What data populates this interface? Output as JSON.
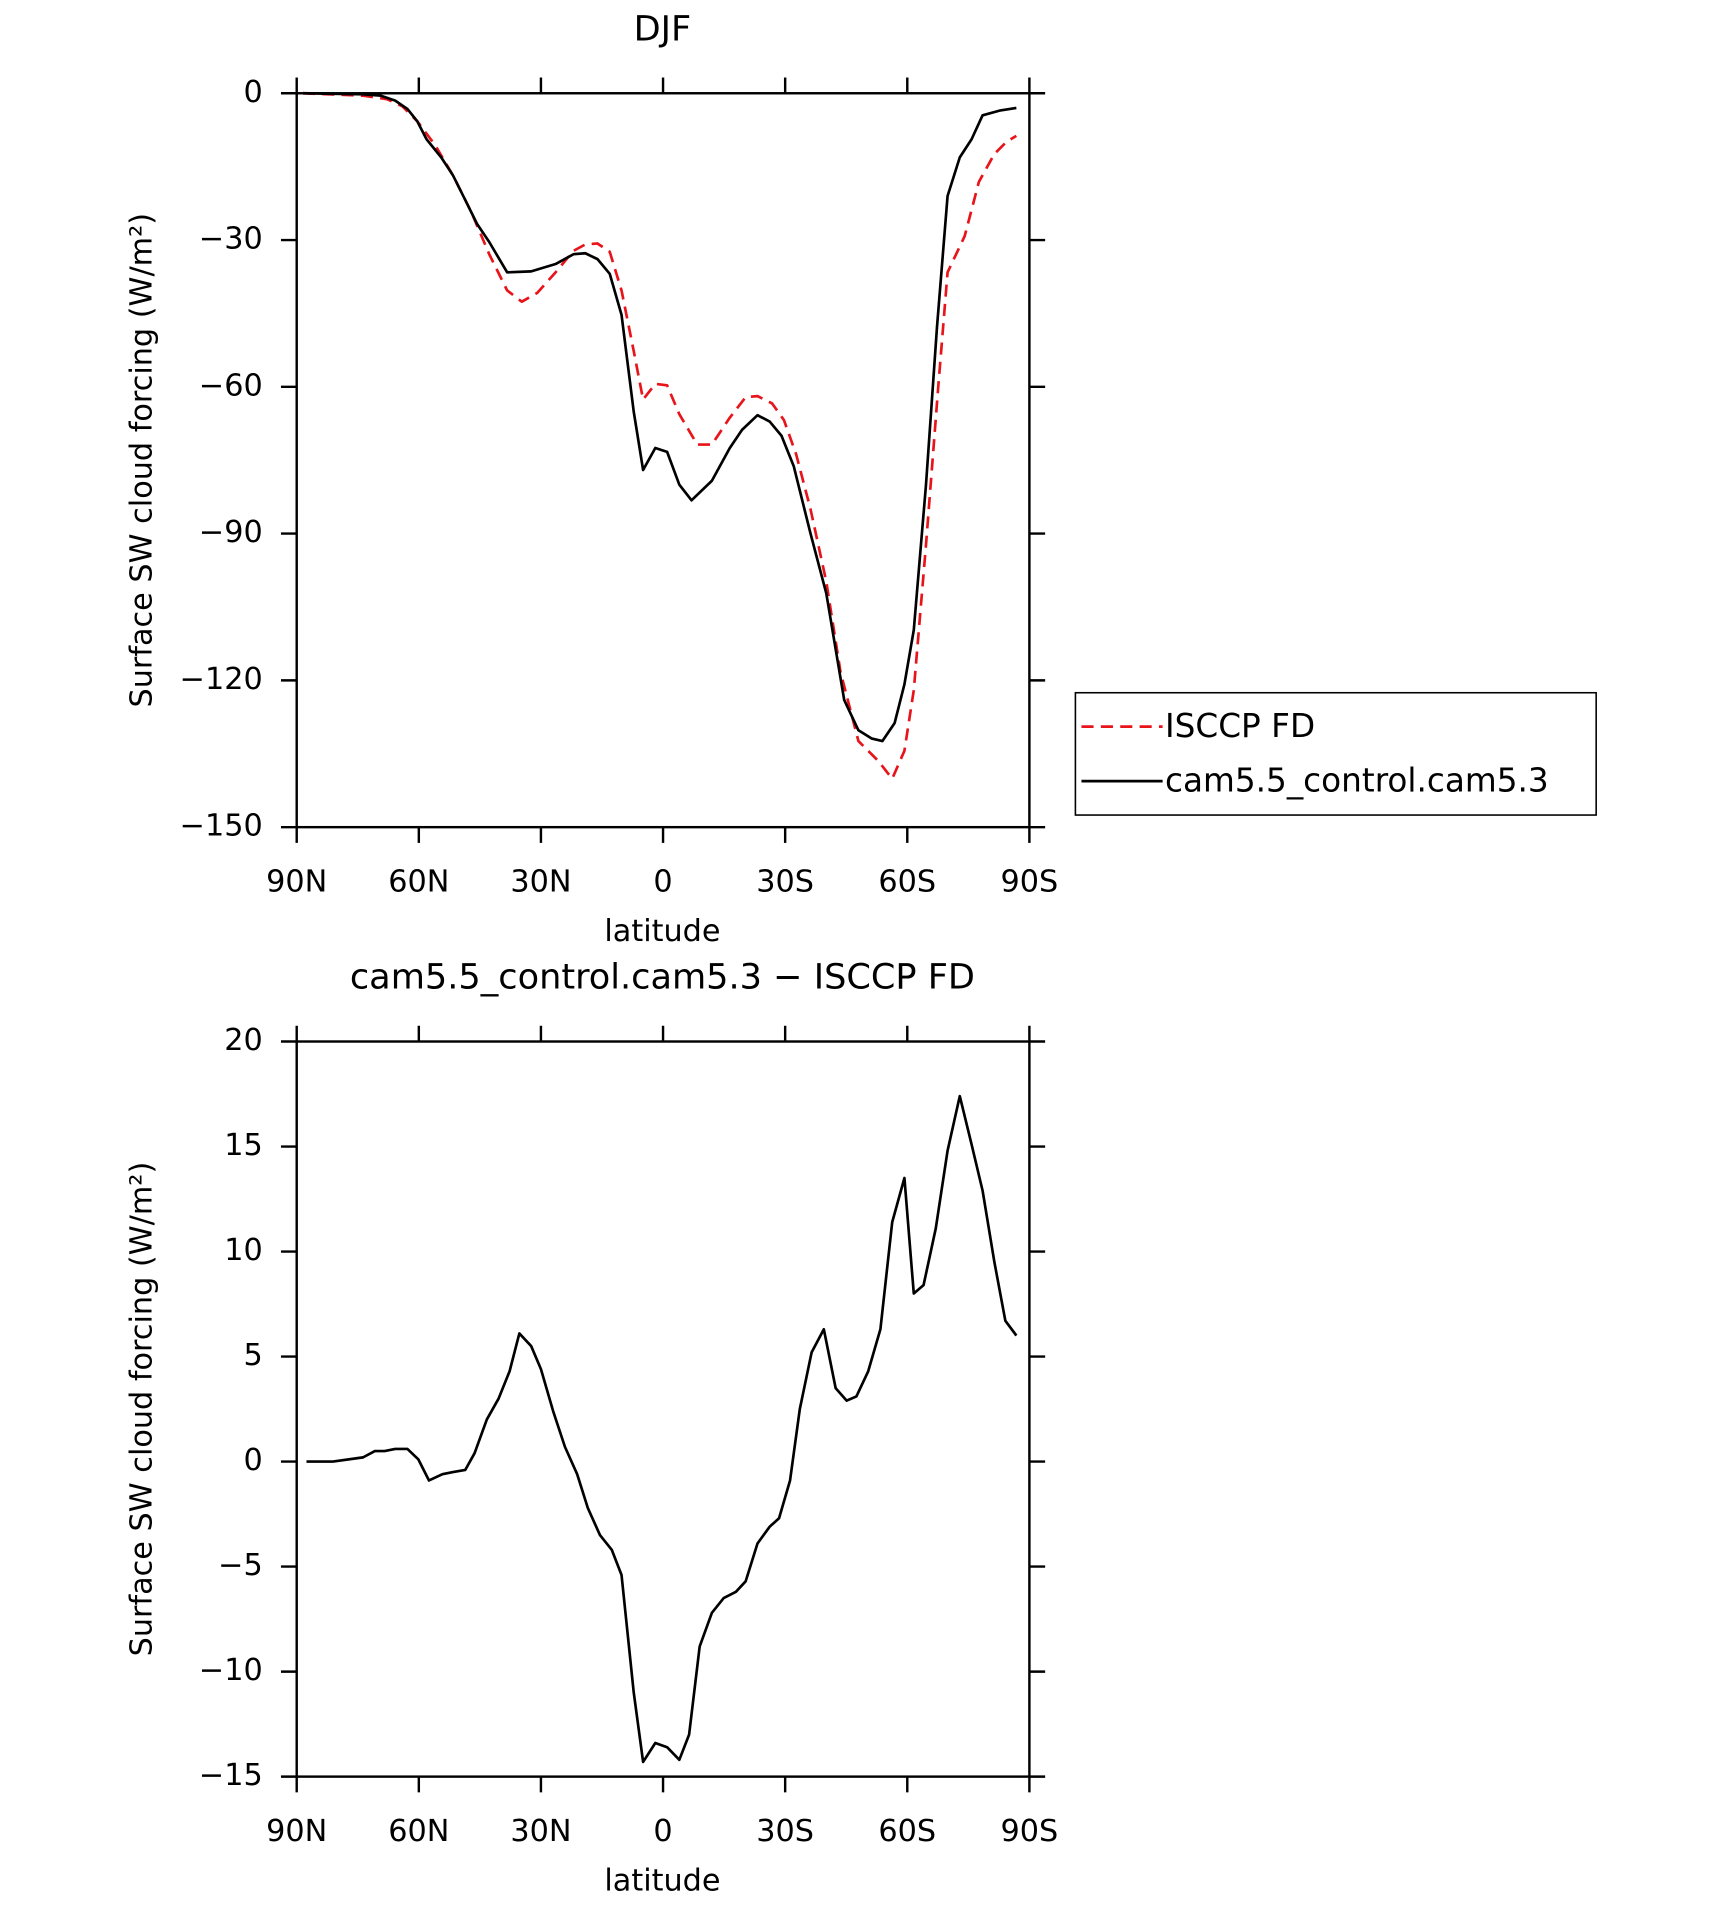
{
  "chart_data": [
    {
      "type": "line",
      "title": "DJF",
      "xlabel": "latitude",
      "ylabel": "Surface SW cloud forcing (W/m²)",
      "xlim": [
        90,
        -90
      ],
      "ylim": [
        -150,
        0
      ],
      "xticks": [
        {
          "value": 90,
          "label": "90N"
        },
        {
          "value": 60,
          "label": "60N"
        },
        {
          "value": 30,
          "label": "30N"
        },
        0,
        {
          "value": -30,
          "label": "30S"
        },
        {
          "value": -60,
          "label": "60S"
        },
        {
          "value": -90,
          "label": "90S"
        }
      ],
      "yticks": [
        0,
        {
          "value": -30,
          "label": "−30"
        },
        {
          "value": -60,
          "label": "−60"
        },
        {
          "value": -90,
          "label": "−90"
        },
        {
          "value": -120,
          "label": "−120"
        },
        {
          "value": -150,
          "label": "−150"
        }
      ],
      "legend": "outside right",
      "series": [
        {
          "name": "ISCCP FD",
          "color": "#e8141a",
          "line_style": "dashed",
          "x": [
            88.5,
            73.7,
            67.8,
            64,
            60.4,
            56,
            51.6,
            47.1,
            42.7,
            38.3,
            34.7,
            30.9,
            26.4,
            22.0,
            19.1,
            16.1,
            13.1,
            10.2,
            7.2,
            4.9,
            1.9,
            -1.0,
            -4.0,
            -8.4,
            -12.0,
            -16.4,
            -20.3,
            -23.2,
            -26.8,
            -29.7,
            -32.7,
            -36.2,
            -40.1,
            -43.6,
            -48.0,
            -52.8,
            -56.3,
            -59.3,
            -61.6,
            -64.6,
            -67.6,
            -69.9,
            -74.1,
            -77.6,
            -81.4,
            -84.4,
            -86.8
          ],
          "values": [
            0,
            -0.5,
            -1.2,
            -2.7,
            -5.7,
            -10.6,
            -16.8,
            -24.3,
            -32.9,
            -40.3,
            -42.6,
            -40.8,
            -36.6,
            -32.2,
            -30.9,
            -30.7,
            -32.4,
            -40.3,
            -52.7,
            -62.6,
            -59.4,
            -59.7,
            -65.6,
            -71.8,
            -71.8,
            -66.3,
            -62.1,
            -61.9,
            -63.4,
            -66.8,
            -73.8,
            -84.9,
            -99.8,
            -118.3,
            -132.4,
            -136.4,
            -140.1,
            -134.4,
            -122,
            -92.3,
            -60.1,
            -36.6,
            -29.2,
            -18.1,
            -12.4,
            -9.9,
            -8.7
          ]
        },
        {
          "name": "cam5.5_control.cam5.3",
          "color": "#000000",
          "line_style": "solid",
          "x": [
            88.5,
            73.7,
            69.3,
            65.8,
            62.8,
            60.4,
            58.1,
            54.5,
            51.6,
            48.6,
            45.7,
            42.7,
            38.3,
            32.4,
            26.4,
            22.0,
            19.1,
            16.1,
            13.1,
            10.2,
            7.2,
            4.9,
            1.9,
            -1.0,
            -4.0,
            -7.0,
            -12.0,
            -16.4,
            -19.4,
            -23.2,
            -26.2,
            -29.1,
            -32.1,
            -36.2,
            -40.1,
            -44.5,
            -48.0,
            -51.3,
            -53.9,
            -56.9,
            -59.3,
            -61.6,
            -64.6,
            -67.3,
            -69.9,
            -72.9,
            -75.8,
            -78.5,
            -82.9,
            -86.8
          ],
          "values": [
            0,
            -0.2,
            -0.5,
            -1.5,
            -3.2,
            -5.7,
            -9.4,
            -13.1,
            -16.8,
            -21.8,
            -26.7,
            -30.4,
            -36.6,
            -36.4,
            -34.9,
            -32.9,
            -32.7,
            -33.9,
            -36.9,
            -45.3,
            -65.1,
            -77,
            -72.5,
            -73.3,
            -80,
            -83.2,
            -79.2,
            -72.5,
            -68.8,
            -65.8,
            -67.1,
            -70,
            -76.2,
            -89.9,
            -102.2,
            -124,
            -130.2,
            -131.9,
            -132.4,
            -128.7,
            -120.8,
            -109.7,
            -80,
            -47.8,
            -21,
            -13.1,
            -9.4,
            -4.5,
            -3.5,
            -3
          ]
        }
      ]
    },
    {
      "type": "line",
      "title": "cam5.5_control.cam5.3 − ISCCP FD",
      "xlabel": "latitude",
      "ylabel": "Surface SW cloud forcing (W/m²)",
      "xlim": [
        90,
        -90
      ],
      "ylim": [
        -15,
        20
      ],
      "xticks": [
        {
          "value": 90,
          "label": "90N"
        },
        {
          "value": 60,
          "label": "60N"
        },
        {
          "value": 30,
          "label": "30N"
        },
        0,
        {
          "value": -30,
          "label": "30S"
        },
        {
          "value": -60,
          "label": "60S"
        },
        {
          "value": -90,
          "label": "90S"
        }
      ],
      "yticks": [
        20,
        15,
        10,
        5,
        0,
        {
          "value": -5,
          "label": "−5"
        },
        {
          "value": -10,
          "label": "−10"
        },
        {
          "value": -15,
          "label": "−15"
        }
      ],
      "color": "#000000",
      "x": [
        87.6,
        81.1,
        73.7,
        70.8,
        68.4,
        65.8,
        62.8,
        60.1,
        57.5,
        54.2,
        51.6,
        48.6,
        46.3,
        43.3,
        40.4,
        37.7,
        35.3,
        32.4,
        30.0,
        27.0,
        24.1,
        21.1,
        18.5,
        15.5,
        12.6,
        10.2,
        7.2,
        4.9,
        1.9,
        -1.0,
        -4.0,
        -6.4,
        -9.0,
        -12.0,
        -14.9,
        -17.9,
        -20.3,
        -23.2,
        -26.2,
        -28.5,
        -31.2,
        -33.6,
        -36.5,
        -39.5,
        -42.4,
        -45.1,
        -47.5,
        -50.4,
        -53.4,
        -56.3,
        -59.3,
        -61.6,
        -64.0,
        -67.0,
        -69.9,
        -72.9,
        -75.8,
        -78.5,
        -81.4,
        -84.1,
        -86.8
      ],
      "values": [
        0,
        0,
        0.2,
        0.5,
        0.5,
        0.6,
        0.6,
        0.1,
        -0.9,
        -0.6,
        -0.5,
        -0.4,
        0.4,
        2.0,
        3.0,
        4.3,
        6.1,
        5.5,
        4.4,
        2.4,
        0.7,
        -0.6,
        -2.2,
        -3.5,
        -4.2,
        -5.4,
        -11.0,
        -14.3,
        -13.4,
        -13.6,
        -14.2,
        -13.0,
        -8.8,
        -7.2,
        -6.5,
        -6.2,
        -5.7,
        -3.9,
        -3.1,
        -2.7,
        -0.9,
        2.5,
        5.2,
        6.3,
        3.5,
        2.9,
        3.1,
        4.3,
        6.3,
        11.4,
        13.5,
        8.0,
        8.4,
        11.1,
        14.8,
        17.4,
        15.1,
        12.9,
        9.5,
        6.7,
        6.0
      ]
    }
  ]
}
